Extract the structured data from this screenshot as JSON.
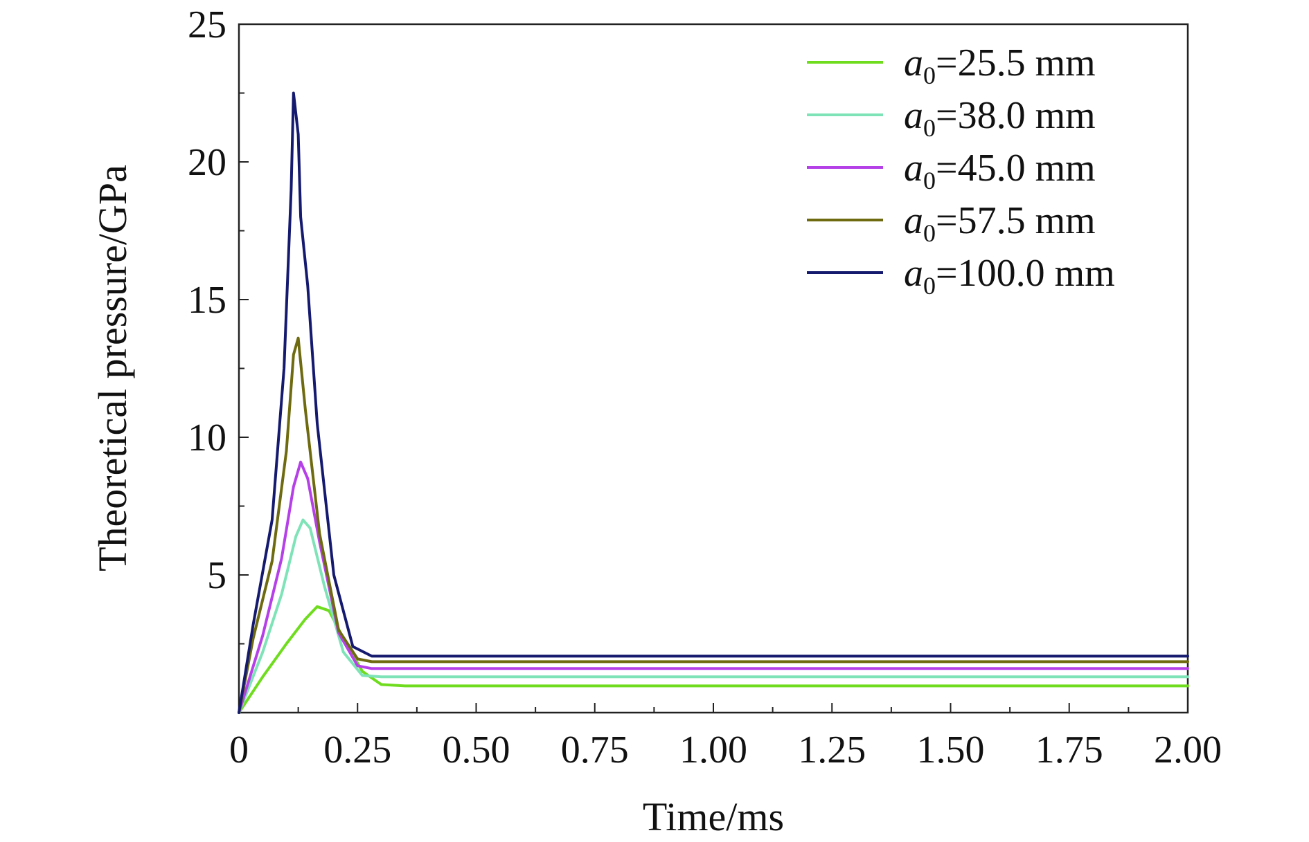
{
  "chart_data": {
    "type": "line",
    "xlabel": "Time/ms",
    "ylabel": "Theoretical pressure/GPa",
    "xlim": [
      0,
      2.0
    ],
    "ylim": [
      0,
      25
    ],
    "x_ticks": [
      0,
      0.25,
      0.5,
      0.75,
      1.0,
      1.25,
      1.5,
      1.75,
      2.0
    ],
    "x_tick_labels": [
      "0",
      "0.25",
      "0.50",
      "0.75",
      "1.00",
      "1.25",
      "1.50",
      "1.75",
      "2.00"
    ],
    "y_ticks": [
      5,
      10,
      15,
      20,
      25
    ],
    "y_tick_labels": [
      "5",
      "10",
      "15",
      "20",
      "25"
    ],
    "grid": false,
    "legend_position": "top-right",
    "series": [
      {
        "name_var": "a",
        "name_sub": "0",
        "name_rest": "=25.5 mm",
        "color": "#6fdc1e",
        "x": [
          0,
          0.05,
          0.1,
          0.14,
          0.165,
          0.19,
          0.22,
          0.26,
          0.3,
          0.35,
          2.0
        ],
        "y": [
          0,
          1.3,
          2.5,
          3.4,
          3.85,
          3.7,
          2.7,
          1.5,
          1.02,
          0.97,
          0.97
        ]
      },
      {
        "name_var": "a",
        "name_sub": "0",
        "name_rest": "=38.0 mm",
        "color": "#7fe3b8",
        "x": [
          0,
          0.05,
          0.09,
          0.12,
          0.135,
          0.15,
          0.18,
          0.22,
          0.26,
          0.3,
          2.0
        ],
        "y": [
          0,
          2.2,
          4.3,
          6.4,
          7.0,
          6.7,
          4.6,
          2.2,
          1.35,
          1.3,
          1.3
        ]
      },
      {
        "name_var": "a",
        "name_sub": "0",
        "name_rest": "=45.0 mm",
        "color": "#b540e8",
        "x": [
          0,
          0.05,
          0.09,
          0.115,
          0.13,
          0.145,
          0.17,
          0.21,
          0.25,
          0.28,
          2.0
        ],
        "y": [
          0,
          2.8,
          5.6,
          8.2,
          9.1,
          8.5,
          6.2,
          2.9,
          1.7,
          1.6,
          1.6
        ]
      },
      {
        "name_var": "a",
        "name_sub": "0",
        "name_rest": "=57.5 mm",
        "color": "#6e6a10",
        "x": [
          0,
          0.03,
          0.07,
          0.1,
          0.115,
          0.125,
          0.14,
          0.17,
          0.21,
          0.25,
          0.28,
          2.0
        ],
        "y": [
          0,
          2.7,
          5.5,
          9.5,
          13.0,
          13.6,
          11.0,
          6.5,
          3.0,
          1.95,
          1.85,
          1.85
        ]
      },
      {
        "name_var": "a",
        "name_sub": "0",
        "name_rest": "=100.0 mm",
        "color": "#151a6e",
        "x": [
          0,
          0.03,
          0.07,
          0.095,
          0.11,
          0.115,
          0.125,
          0.13,
          0.145,
          0.165,
          0.2,
          0.24,
          0.28,
          2.0
        ],
        "y": [
          0,
          3.2,
          7.0,
          12.5,
          19.0,
          22.5,
          21.0,
          18.0,
          15.5,
          10.5,
          5.0,
          2.4,
          2.05,
          2.05
        ]
      }
    ]
  }
}
